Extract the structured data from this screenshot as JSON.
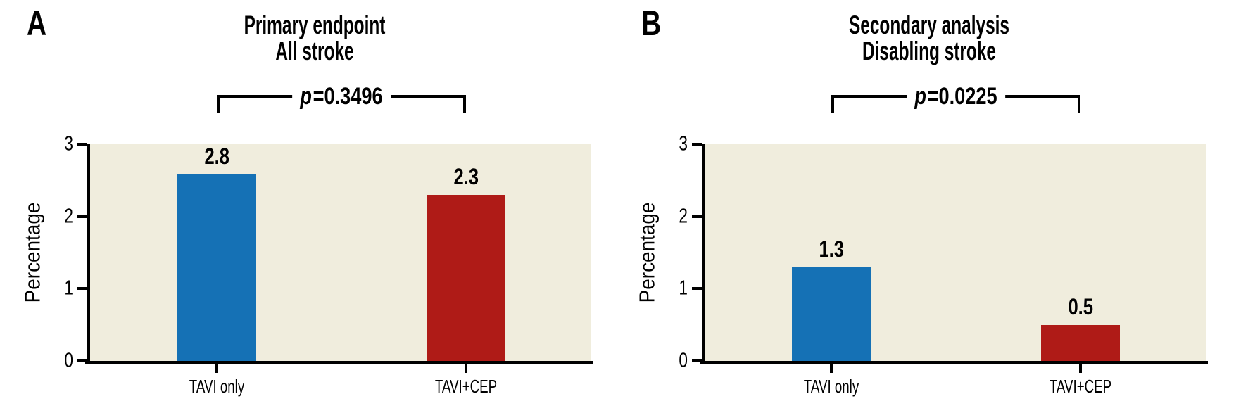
{
  "figure": {
    "background": "#ffffff",
    "colors": {
      "plot_background": "#F0EDDD",
      "axis": "#000000",
      "bar_blue": "#1571B5",
      "bar_red": "#AF1B17"
    }
  },
  "chart_data": [
    {
      "type": "bar",
      "panel_label": "A",
      "title": "Primary endpoint",
      "subtitle": "All stroke",
      "p_annotation": {
        "symbol": "p",
        "rest": "=0.3496",
        "full": "p=0.3496"
      },
      "ylabel": "Percentage",
      "categories": [
        "TAVI only",
        "TAVI+CEP"
      ],
      "values": [
        2.8,
        2.3
      ],
      "value_labels": [
        "2.8",
        "2.3"
      ],
      "series_colors": [
        "#1571B5",
        "#AF1B17"
      ],
      "ylim": [
        0,
        3
      ],
      "yticks": [
        0,
        1,
        2,
        3
      ],
      "grid": false
    },
    {
      "type": "bar",
      "panel_label": "B",
      "title": "Secondary analysis",
      "subtitle": "Disabling stroke",
      "p_annotation": {
        "symbol": "p",
        "rest": "=0.0225",
        "full": "p=0.0225"
      },
      "ylabel": "Percentage",
      "categories": [
        "TAVI only",
        "TAVI+CEP"
      ],
      "values": [
        1.3,
        0.5
      ],
      "value_labels": [
        "1.3",
        "0.5"
      ],
      "series_colors": [
        "#1571B5",
        "#AF1B17"
      ],
      "ylim": [
        0,
        3
      ],
      "yticks": [
        0,
        1,
        2,
        3
      ],
      "grid": false
    }
  ]
}
